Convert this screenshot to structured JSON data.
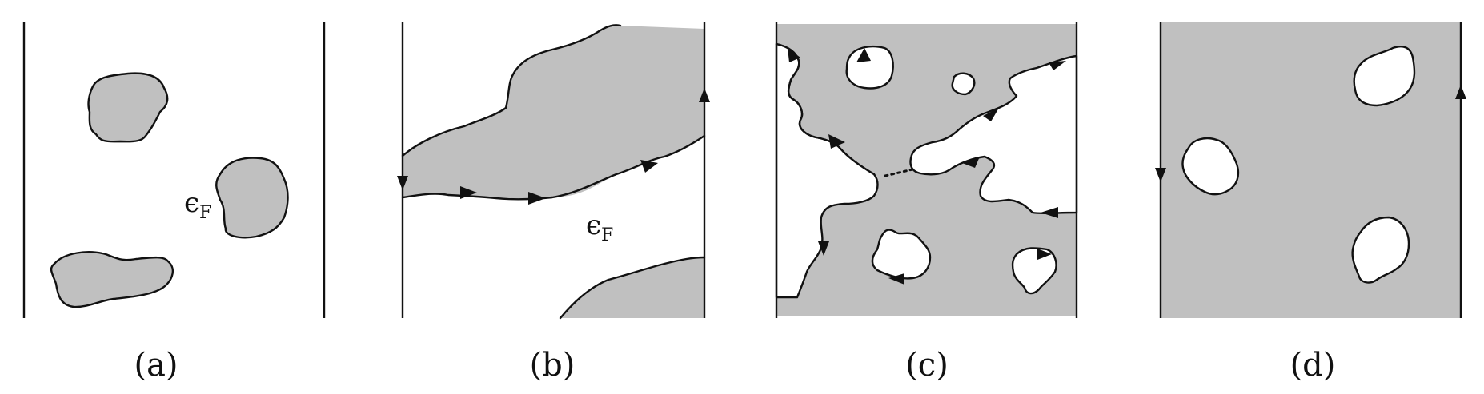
{
  "panels": [
    {
      "id": "a",
      "label": "(a)",
      "energy_label": {
        "symbol": "ϵ",
        "subscript": "F"
      }
    },
    {
      "id": "b",
      "label": "(b)",
      "energy_label": {
        "symbol": "ϵ",
        "subscript": "F"
      }
    },
    {
      "id": "c",
      "label": "(c)"
    },
    {
      "id": "d",
      "label": "(d)"
    }
  ],
  "colors": {
    "filled_region": "#c0c0c0",
    "line": "#111111",
    "background": "#ffffff"
  }
}
